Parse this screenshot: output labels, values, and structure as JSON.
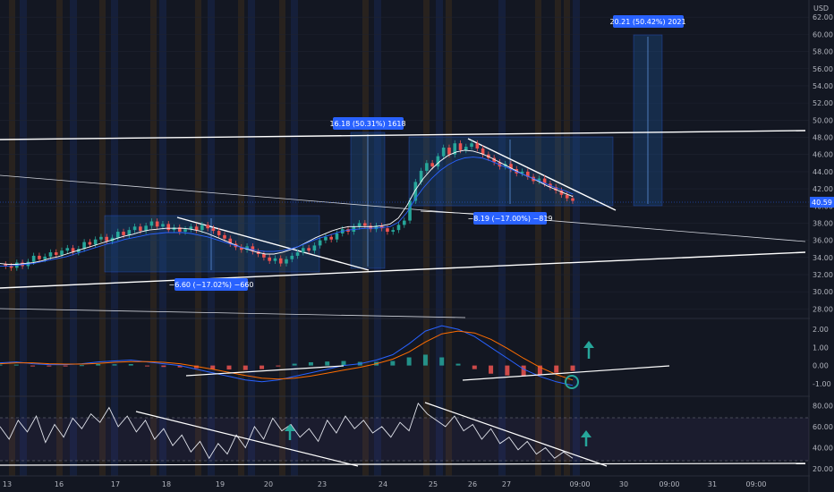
{
  "chart_data": {
    "type": "candlestick",
    "currency": "USD",
    "price_axis": {
      "ylim": [
        27,
        64
      ],
      "ticks": [
        28,
        30,
        32,
        34,
        36,
        38,
        40,
        42,
        44,
        46,
        48,
        50,
        52,
        54,
        56,
        58,
        60,
        62
      ],
      "tick_labels": [
        "28.00",
        "30.00",
        "32.00",
        "34.00",
        "36.00",
        "38.00",
        "40.00",
        "42.00",
        "44.00",
        "46.00",
        "48.00",
        "50.00",
        "52.00",
        "54.00",
        "56.00",
        "58.00",
        "60.00",
        "62.00"
      ],
      "last_price": "40.59"
    },
    "time_axis": {
      "labels": [
        "13",
        "16",
        "17",
        "18",
        "19",
        "20",
        "23",
        "24",
        "25",
        "26",
        "27",
        "09:00",
        "30",
        "09:00",
        "31",
        "09:00"
      ]
    },
    "price_series": [
      33.2,
      33.0,
      32.8,
      33.4,
      33.0,
      33.5,
      34.2,
      33.8,
      34.1,
      34.6,
      34.3,
      34.8,
      35.1,
      34.6,
      35.0,
      35.8,
      35.5,
      36.1,
      36.4,
      35.9,
      36.3,
      37.0,
      36.6,
      37.2,
      37.6,
      37.1,
      37.7,
      38.2,
      37.6,
      37.9,
      37.2,
      37.5,
      37.0,
      37.3,
      37.6,
      37.2,
      37.8,
      37.4,
      37.1,
      36.6,
      36.2,
      35.6,
      35.2,
      34.9,
      35.3,
      34.7,
      34.4,
      34.0,
      33.6,
      33.9,
      33.3,
      33.8,
      34.2,
      34.6,
      35.1,
      34.8,
      35.4,
      36.0,
      36.4,
      36.1,
      36.8,
      37.3,
      37.0,
      37.6,
      38.0,
      37.7,
      37.3,
      37.7,
      37.4,
      37.0,
      37.2,
      37.8,
      38.3,
      40.6,
      42.8,
      44.1,
      45.0,
      44.6,
      45.8,
      46.8,
      46.0,
      47.3,
      46.5,
      46.9,
      47.3,
      46.7,
      46.0,
      45.6,
      45.1,
      44.6,
      44.9,
      44.3,
      43.8,
      44.0,
      43.4,
      42.9,
      43.2,
      42.6,
      42.2,
      41.8,
      41.3,
      40.9,
      40.6
    ],
    "ema_fast": [
      33.3,
      33.2,
      33.2,
      33.3,
      33.4,
      33.6,
      33.9,
      34.1,
      34.4,
      34.7,
      35.0,
      35.3,
      35.6,
      35.9,
      36.2,
      36.5,
      36.7,
      37.0,
      37.2,
      37.3,
      37.4,
      37.4,
      37.4,
      37.3,
      37.1,
      36.8,
      36.4,
      36.0,
      35.6,
      35.2,
      34.9,
      34.6,
      34.4,
      34.4,
      34.6,
      34.9,
      35.3,
      35.8,
      36.3,
      36.7,
      37.1,
      37.4,
      37.6,
      37.6,
      37.6,
      37.6,
      37.7,
      37.9,
      38.6,
      40.0,
      41.8,
      43.2,
      44.3,
      45.2,
      45.9,
      46.3,
      46.5,
      46.4,
      46.1,
      45.7,
      45.2,
      44.7,
      44.2,
      43.7,
      43.3,
      42.8,
      42.3,
      41.9,
      41.5,
      41.1
    ],
    "ema_slow": [
      33.0,
      33.0,
      33.1,
      33.2,
      33.3,
      33.5,
      33.7,
      33.9,
      34.1,
      34.4,
      34.7,
      35.0,
      35.3,
      35.6,
      35.8,
      36.1,
      36.3,
      36.5,
      36.7,
      36.8,
      36.9,
      36.9,
      36.9,
      36.8,
      36.6,
      36.4,
      36.1,
      35.8,
      35.5,
      35.2,
      35.0,
      34.8,
      34.7,
      34.7,
      34.8,
      35.0,
      35.3,
      35.7,
      36.1,
      36.4,
      36.7,
      37.0,
      37.2,
      37.3,
      37.4,
      37.4,
      37.5,
      37.6,
      38.1,
      39.2,
      40.8,
      42.1,
      43.2,
      44.1,
      44.8,
      45.3,
      45.6,
      45.7,
      45.6,
      45.3,
      44.9,
      44.5,
      44.1,
      43.7,
      43.3,
      42.9,
      42.5,
      42.1,
      41.8,
      41.4
    ],
    "measurements": [
      {
        "label": "−6.60 (−17.02%) −660",
        "change": -6.6,
        "percent": -17.02,
        "ticks": -660
      },
      {
        "label": "16.18 (50.31%) 1618",
        "change": 16.18,
        "percent": 50.31,
        "ticks": 1618
      },
      {
        "label": "−8.19 (−17.00%) −819",
        "change": -8.19,
        "percent": -17.0,
        "ticks": -819
      },
      {
        "label": "20.21 (50.42%) 2021",
        "change": 20.21,
        "percent": 50.42,
        "ticks": 2021
      }
    ],
    "macd": {
      "ylim": [
        -1.6,
        2.5
      ],
      "ticks": [
        2.0,
        1.0,
        0.0,
        -1.0
      ],
      "tick_labels": [
        "2.00",
        "1.00",
        "0.00",
        "-1.00"
      ],
      "macd_line": [
        0.15,
        0.2,
        0.1,
        0.05,
        0.05,
        0.1,
        0.2,
        0.25,
        0.3,
        0.2,
        0.1,
        0.0,
        -0.2,
        -0.4,
        -0.6,
        -0.8,
        -0.9,
        -0.8,
        -0.6,
        -0.4,
        -0.2,
        0.0,
        0.1,
        0.3,
        0.6,
        1.2,
        1.9,
        2.2,
        2.0,
        1.6,
        1.0,
        0.4,
        -0.2,
        -0.6,
        -0.9,
        -1.1
      ],
      "signal_line": [
        0.1,
        0.15,
        0.15,
        0.1,
        0.08,
        0.08,
        0.12,
        0.18,
        0.22,
        0.22,
        0.18,
        0.1,
        -0.05,
        -0.2,
        -0.38,
        -0.55,
        -0.7,
        -0.75,
        -0.7,
        -0.58,
        -0.42,
        -0.25,
        -0.1,
        0.1,
        0.35,
        0.75,
        1.3,
        1.75,
        1.9,
        1.8,
        1.45,
        0.95,
        0.4,
        -0.1,
        -0.5,
        -0.8
      ]
    },
    "rsi": {
      "ylim": [
        15,
        87
      ],
      "ticks": [
        80,
        60,
        40,
        20
      ],
      "tick_labels": [
        "80.00",
        "60.00",
        "40.00",
        "20.00"
      ],
      "values": [
        60,
        48,
        66,
        55,
        70,
        45,
        62,
        50,
        68,
        58,
        72,
        64,
        78,
        60,
        70,
        55,
        66,
        48,
        58,
        42,
        52,
        36,
        46,
        30,
        44,
        34,
        52,
        40,
        60,
        48,
        68,
        56,
        62,
        50,
        58,
        46,
        66,
        54,
        70,
        58,
        66,
        54,
        60,
        50,
        64,
        56,
        82,
        72,
        66,
        60,
        70,
        56,
        62,
        48,
        58,
        44,
        50,
        38,
        46,
        34,
        40,
        30,
        36,
        30
      ]
    },
    "annotations": [
      {
        "kind": "arrow-up",
        "panel": "macd"
      },
      {
        "kind": "arrow-up",
        "panel": "rsi"
      },
      {
        "kind": "arrow-up",
        "panel": "rsi"
      },
      {
        "kind": "circle",
        "panel": "macd"
      }
    ],
    "colors": {
      "background": "#131722",
      "up": "#26a69a",
      "down": "#ef5350",
      "trendline": "#ffffff",
      "measure_box": "#1e5caa",
      "measure_tag": "#2962ff",
      "orange_band": "#ff9800",
      "blue_band": "#2962ff",
      "ema_fast": "#ffffff",
      "ema_slow": "#2962ff",
      "macd": "#2962ff",
      "signal": "#ff6d00",
      "rsi": "#ffffff",
      "arrow": "#26a69a"
    }
  }
}
